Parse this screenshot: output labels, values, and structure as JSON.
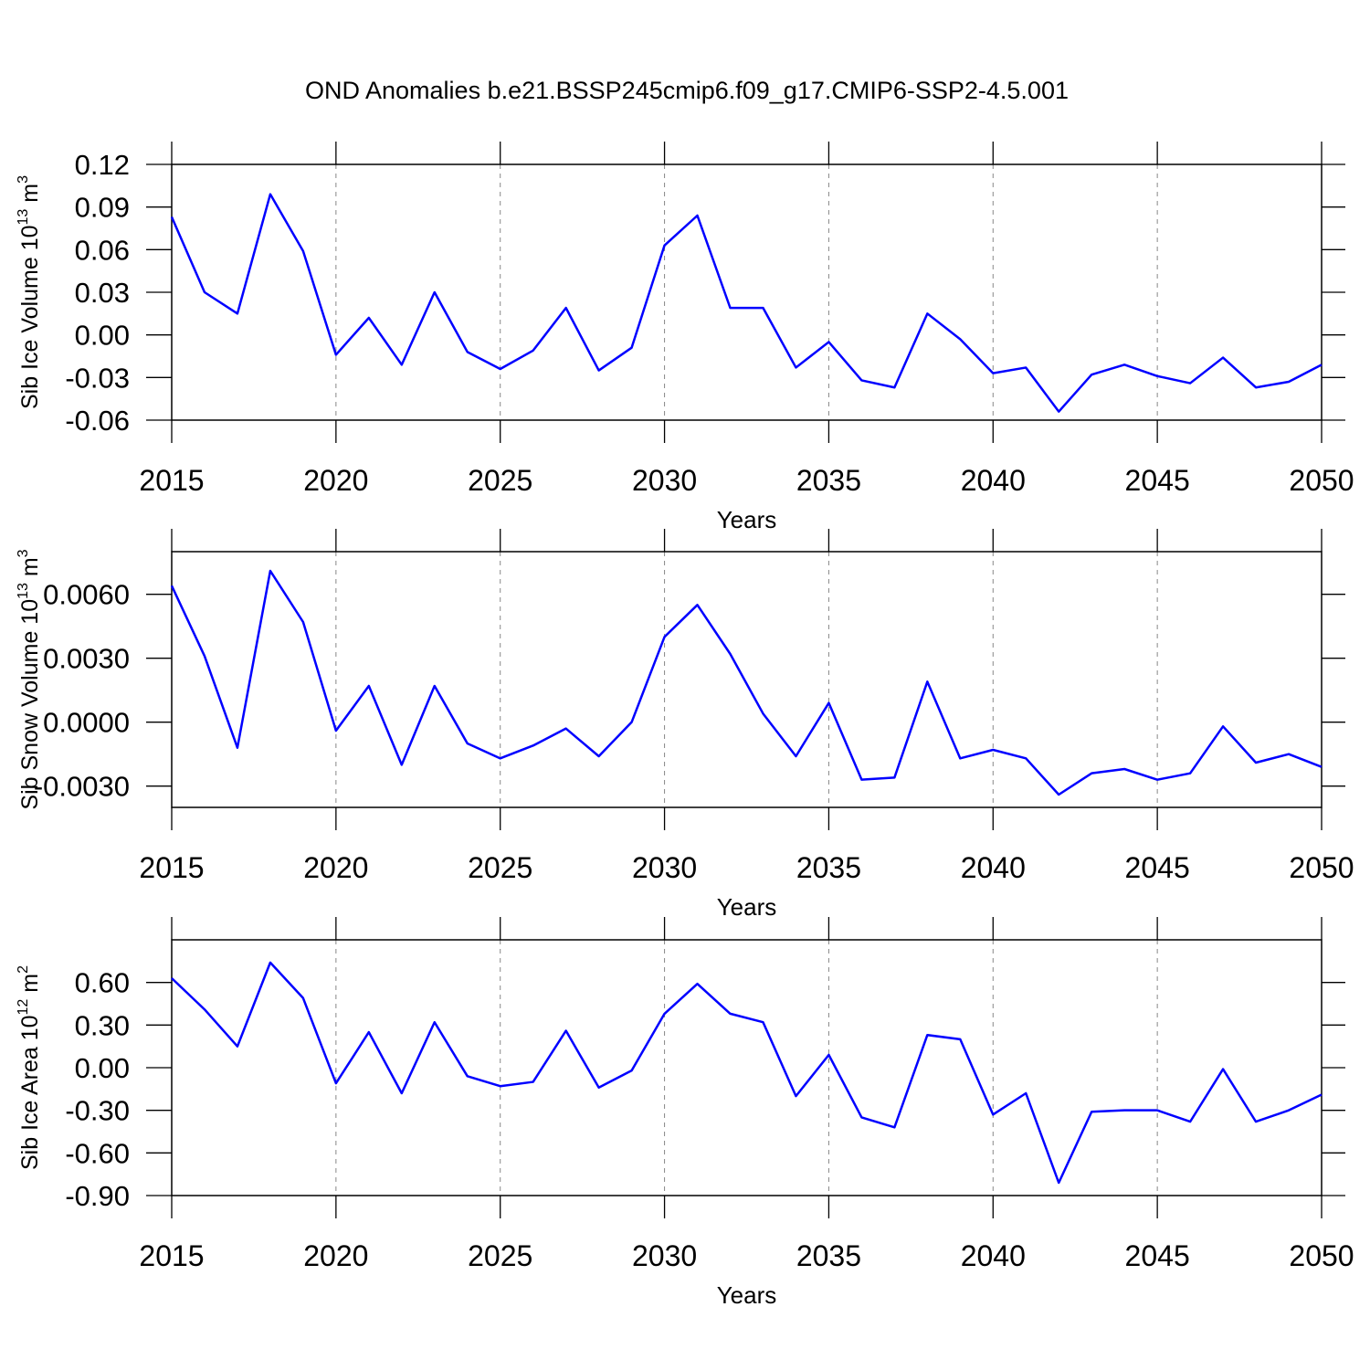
{
  "title": "OND Anomalies b.e21.BSSP245cmip6.f09_g17.CMIP6-SSP2-4.5.001",
  "chart_data": [
    {
      "type": "line",
      "ylabel_parts": [
        "Sib Ice Volume 10",
        "13",
        " m",
        "3"
      ],
      "xlabel": "Years",
      "x": [
        2015,
        2016,
        2017,
        2018,
        2019,
        2020,
        2021,
        2022,
        2023,
        2024,
        2025,
        2026,
        2027,
        2028,
        2029,
        2030,
        2031,
        2032,
        2033,
        2034,
        2035,
        2036,
        2037,
        2038,
        2039,
        2040,
        2041,
        2042,
        2043,
        2044,
        2045,
        2046,
        2047,
        2048,
        2049,
        2050
      ],
      "series": [
        {
          "color": "#0000ff",
          "values": [
            0.083,
            0.03,
            0.015,
            0.099,
            0.059,
            -0.014,
            0.012,
            -0.021,
            0.03,
            -0.012,
            -0.024,
            -0.011,
            0.019,
            -0.025,
            -0.009,
            0.063,
            0.084,
            0.019,
            0.019,
            -0.023,
            -0.005,
            -0.032,
            -0.037,
            0.015,
            -0.003,
            -0.027,
            -0.023,
            -0.054,
            -0.028,
            -0.021,
            -0.029,
            -0.034,
            -0.016,
            -0.037,
            -0.033,
            -0.021
          ]
        }
      ],
      "xlim": [
        2015,
        2050
      ],
      "xticks": [
        2015,
        2020,
        2025,
        2030,
        2035,
        2040,
        2045,
        2050
      ],
      "ylim": [
        -0.06,
        0.12
      ],
      "yticks": [
        0.12,
        0.09,
        0.06,
        0.03,
        {
          "value": 0,
          "label": "0.00"
        },
        -0.03,
        -0.06
      ],
      "grid": true
    },
    {
      "type": "line",
      "ylabel_parts": [
        "Sib Snow Volume 10",
        "13",
        " m",
        "3"
      ],
      "xlabel": "Years",
      "x": [
        2015,
        2016,
        2017,
        2018,
        2019,
        2020,
        2021,
        2022,
        2023,
        2024,
        2025,
        2026,
        2027,
        2028,
        2029,
        2030,
        2031,
        2032,
        2033,
        2034,
        2035,
        2036,
        2037,
        2038,
        2039,
        2040,
        2041,
        2042,
        2043,
        2044,
        2045,
        2046,
        2047,
        2048,
        2049,
        2050
      ],
      "series": [
        {
          "color": "#0000ff",
          "values": [
            0.0064,
            0.0031,
            -0.0012,
            0.0071,
            0.0047,
            -0.0004,
            0.0017,
            -0.002,
            0.0017,
            -0.001,
            -0.0017,
            -0.0011,
            -0.0003,
            -0.0016,
            0,
            0.004,
            0.0055,
            0.0032,
            0.0004,
            -0.0016,
            0.0009,
            -0.0027,
            -0.0026,
            0.0019,
            -0.0017,
            -0.0013,
            -0.0017,
            -0.0034,
            -0.0024,
            -0.0022,
            -0.0027,
            -0.0024,
            -0.0002,
            -0.0019,
            -0.0015,
            -0.0021
          ]
        }
      ],
      "xlim": [
        2015,
        2050
      ],
      "xticks": [
        2015,
        2020,
        2025,
        2030,
        2035,
        2040,
        2045,
        2050
      ],
      "ylim": [
        -0.004,
        0.008
      ],
      "yticks": [
        {
          "value": 0.006,
          "label": "0.0060"
        },
        {
          "value": 0.003,
          "label": "0.0030"
        },
        {
          "value": 0,
          "label": "0.0000"
        },
        {
          "value": -0.003,
          "label": "-0.0030"
        }
      ],
      "grid": true
    },
    {
      "type": "line",
      "ylabel_parts": [
        "Sib Ice Area 10",
        "12",
        " m",
        "2"
      ],
      "xlabel": "Years",
      "x": [
        2015,
        2016,
        2017,
        2018,
        2019,
        2020,
        2021,
        2022,
        2023,
        2024,
        2025,
        2026,
        2027,
        2028,
        2029,
        2030,
        2031,
        2032,
        2033,
        2034,
        2035,
        2036,
        2037,
        2038,
        2039,
        2040,
        2041,
        2042,
        2043,
        2044,
        2045,
        2046,
        2047,
        2048,
        2049,
        2050
      ],
      "series": [
        {
          "color": "#0000ff",
          "values": [
            0.63,
            0.41,
            0.15,
            0.74,
            0.49,
            -0.11,
            0.25,
            -0.18,
            0.32,
            -0.06,
            -0.13,
            -0.1,
            0.26,
            -0.14,
            -0.02,
            0.38,
            0.59,
            0.38,
            0.32,
            -0.2,
            0.09,
            -0.35,
            -0.42,
            0.23,
            0.2,
            -0.33,
            -0.18,
            -0.81,
            -0.31,
            -0.3,
            -0.3,
            -0.38,
            -0.01,
            -0.38,
            -0.3,
            -0.19
          ]
        }
      ],
      "xlim": [
        2015,
        2050
      ],
      "xticks": [
        2015,
        2020,
        2025,
        2030,
        2035,
        2040,
        2045,
        2050
      ],
      "ylim": [
        -0.9,
        0.9
      ],
      "yticks": [
        {
          "value": 0.6,
          "label": "0.60"
        },
        {
          "value": 0.3,
          "label": "0.30"
        },
        {
          "value": 0,
          "label": "0.00"
        },
        {
          "value": -0.3,
          "label": "-0.30"
        },
        {
          "value": -0.6,
          "label": "-0.60"
        },
        {
          "value": -0.9,
          "label": "-0.90"
        }
      ],
      "grid": true
    }
  ]
}
